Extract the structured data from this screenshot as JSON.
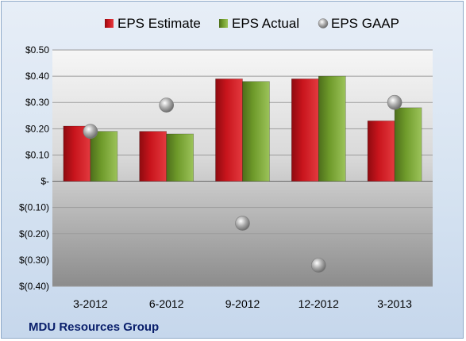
{
  "company": "MDU Resources Group",
  "colors": {
    "estimate": "#c8141c",
    "actual": "#6e9a2a",
    "gaap": "#a9a9a9"
  },
  "chart_data": {
    "type": "bar",
    "categories": [
      "3-2012",
      "6-2012",
      "9-2012",
      "12-2012",
      "3-2013"
    ],
    "series": [
      {
        "name": "EPS Estimate",
        "type": "bar",
        "values": [
          0.21,
          0.19,
          0.39,
          0.39,
          0.23
        ]
      },
      {
        "name": "EPS Actual",
        "type": "bar",
        "values": [
          0.19,
          0.18,
          0.38,
          0.4,
          0.28
        ]
      },
      {
        "name": "EPS GAAP",
        "type": "scatter",
        "values": [
          0.19,
          0.29,
          -0.16,
          -0.32,
          0.3
        ]
      }
    ],
    "ylim": [
      -0.4,
      0.5
    ],
    "yticks": [
      0.5,
      0.4,
      0.3,
      0.2,
      0.1,
      0,
      -0.1,
      -0.2,
      -0.3,
      -0.4
    ],
    "ytick_labels": [
      "$0.50",
      "$0.40",
      "$0.30",
      "$0.20",
      "$0.10",
      "$-",
      "$(0.10)",
      "$(0.20)",
      "$(0.30)",
      "$(0.40)"
    ],
    "legend_position": "top",
    "grid": true
  }
}
